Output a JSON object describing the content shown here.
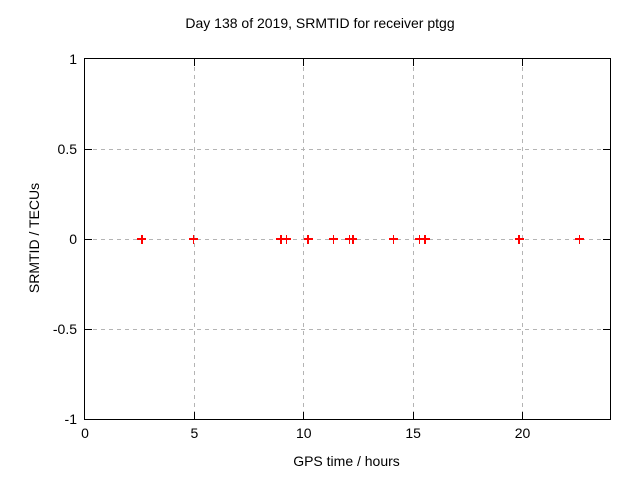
{
  "chart_data": {
    "type": "scatter",
    "title": "Day 138 of 2019, SRMTID for receiver ptgg",
    "xlabel": "GPS time / hours",
    "ylabel": "SRMTID / TECUs",
    "xlim": [
      0,
      24
    ],
    "ylim": [
      -1,
      1
    ],
    "xticks": [
      0,
      5,
      10,
      15,
      20
    ],
    "yticks": [
      -1,
      -0.5,
      0,
      0.5,
      1
    ],
    "grid": true,
    "legend": "none",
    "series": [
      {
        "name": "SRMTID",
        "marker": "plus",
        "color": "#ff0000",
        "x": [
          2.6,
          4.95,
          8.95,
          9.2,
          10.2,
          11.35,
          12.1,
          12.25,
          14.1,
          15.3,
          15.55,
          19.85,
          22.6
        ],
        "y": [
          0,
          0,
          0,
          0,
          0,
          0,
          0,
          0,
          0,
          0,
          0,
          0,
          0
        ]
      }
    ]
  },
  "colors": {
    "background": "#ffffff",
    "axis": "#000000",
    "grid": "#b4b4b4",
    "marker": "#ff0000",
    "text": "#000000"
  }
}
